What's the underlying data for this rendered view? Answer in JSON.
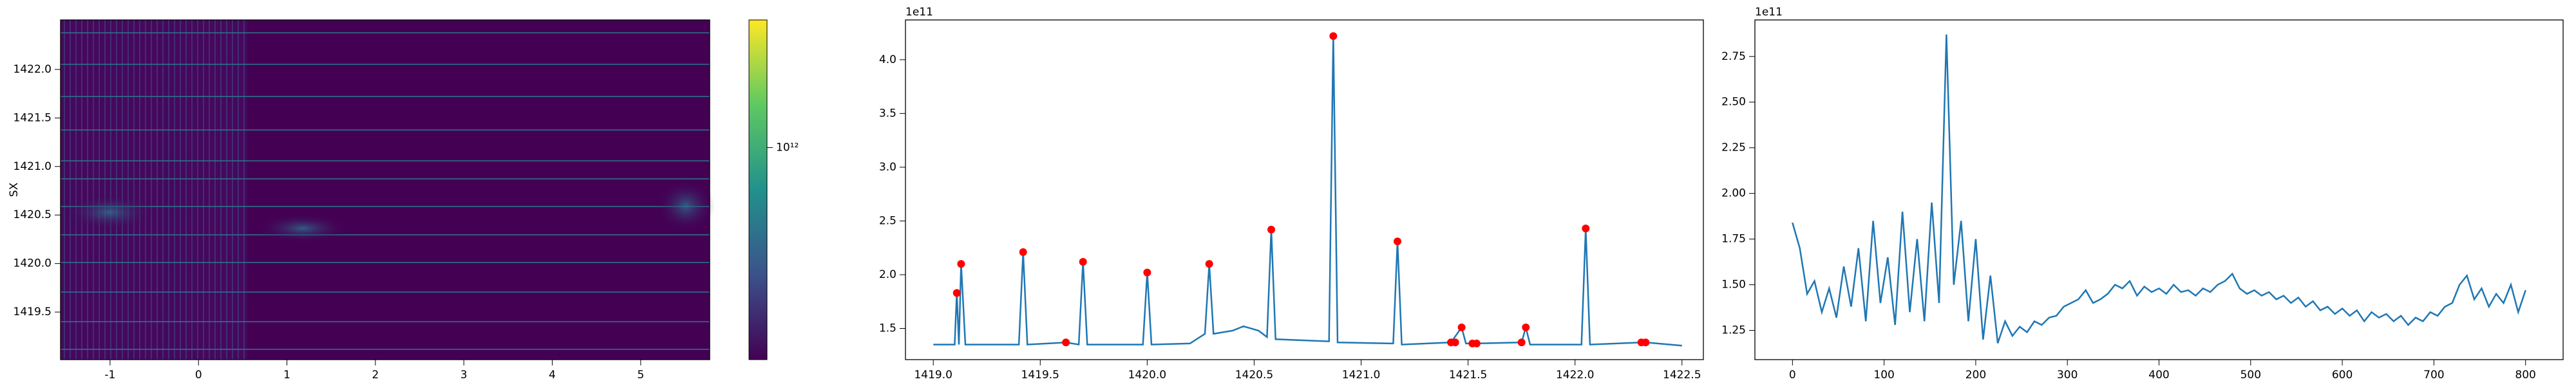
{
  "chart_data": [
    {
      "type": "heatmap",
      "ylabel": "SX",
      "xlim": [
        -1.56,
        5.78
      ],
      "xticks": [
        -1,
        0,
        1,
        2,
        3,
        4,
        5
      ],
      "ylim": [
        1419.01,
        1422.51
      ],
      "yticks": [
        1419.5,
        {
          "value": 1420.0,
          "label": "1420.0"
        },
        1420.5,
        {
          "value": 1421.0,
          "label": "1421.0"
        },
        1421.5,
        {
          "value": 1422.0,
          "label": "1422.0"
        }
      ],
      "colorbar": {
        "scale": "log",
        "clim": [
          100000000000,
          4000000000000
        ],
        "ticks": [
          {
            "value": 1000000000000,
            "label": "10¹²"
          }
        ]
      }
    },
    {
      "type": "line",
      "offset_text": "1e11",
      "color": "#1f77b4",
      "xlim": [
        1418.87,
        1422.6
      ],
      "xticks": [
        {
          "value": 1419.0,
          "label": "1419.0"
        },
        1419.5,
        {
          "value": 1420.0,
          "label": "1420.0"
        },
        1420.5,
        {
          "value": 1421.0,
          "label": "1421.0"
        },
        1421.5,
        {
          "value": 1422.0,
          "label": "1422.0"
        },
        1422.5
      ],
      "ylim": [
        1.21,
        4.37
      ],
      "yticks": [
        1.5,
        {
          "value": 2.0,
          "label": "2.0"
        },
        2.5,
        {
          "value": 3.0,
          "label": "3.0"
        },
        3.5,
        {
          "value": 4.0,
          "label": "4.0"
        }
      ],
      "x": [
        1419.0,
        1419.1,
        1419.11,
        1419.12,
        1419.13,
        1419.15,
        1419.4,
        1419.42,
        1419.44,
        1419.62,
        1419.68,
        1419.7,
        1419.72,
        1419.98,
        1420.0,
        1420.02,
        1420.2,
        1420.27,
        1420.29,
        1420.31,
        1420.4,
        1420.45,
        1420.52,
        1420.56,
        1420.58,
        1420.6,
        1420.85,
        1420.87,
        1420.89,
        1421.15,
        1421.17,
        1421.19,
        1421.42,
        1421.47,
        1421.49,
        1421.54,
        1421.75,
        1421.77,
        1421.79,
        1422.03,
        1422.05,
        1422.07,
        1422.31,
        1422.33,
        1422.5
      ],
      "values": [
        1.35,
        1.35,
        1.83,
        1.35,
        2.1,
        1.35,
        1.35,
        2.21,
        1.35,
        1.37,
        1.35,
        2.12,
        1.35,
        1.35,
        2.02,
        1.35,
        1.36,
        1.45,
        2.1,
        1.45,
        1.48,
        1.52,
        1.48,
        1.42,
        2.42,
        1.4,
        1.38,
        4.22,
        1.37,
        1.36,
        2.31,
        1.35,
        1.37,
        1.51,
        1.36,
        1.36,
        1.37,
        1.51,
        1.35,
        1.35,
        2.43,
        1.35,
        1.37,
        1.37,
        1.34
      ],
      "markers": {
        "color": "red",
        "x": [
          1419.11,
          1419.13,
          1419.42,
          1419.62,
          1419.7,
          1420.0,
          1420.29,
          1420.58,
          1420.87,
          1421.17,
          1421.42,
          1421.44,
          1421.47,
          1421.52,
          1421.54,
          1421.75,
          1421.77,
          1422.05,
          1422.31,
          1422.33
        ],
        "values": [
          1.83,
          2.1,
          2.21,
          1.37,
          2.12,
          2.02,
          2.1,
          2.42,
          4.22,
          2.31,
          1.37,
          1.37,
          1.51,
          1.36,
          1.36,
          1.37,
          1.51,
          2.43,
          1.37,
          1.37
        ]
      }
    },
    {
      "type": "line",
      "offset_text": "1e11",
      "color": "#1f77b4",
      "xlim": [
        -41,
        841
      ],
      "xticks": [
        0,
        100,
        200,
        300,
        400,
        500,
        600,
        700,
        800
      ],
      "ylim": [
        1.09,
        2.95
      ],
      "yticks": [
        1.25,
        {
          "value": 1.5,
          "label": "1.50"
        },
        1.75,
        {
          "value": 2.0,
          "label": "2.00"
        },
        2.25,
        {
          "value": 2.5,
          "label": "2.50"
        },
        2.75
      ],
      "x": [
        0,
        8,
        16,
        24,
        32,
        40,
        48,
        56,
        64,
        72,
        80,
        88,
        96,
        104,
        112,
        120,
        128,
        136,
        144,
        152,
        160,
        168,
        176,
        184,
        192,
        200,
        208,
        216,
        224,
        232,
        240,
        248,
        256,
        264,
        272,
        280,
        288,
        296,
        304,
        312,
        320,
        328,
        336,
        344,
        352,
        360,
        368,
        376,
        384,
        392,
        400,
        408,
        416,
        424,
        432,
        440,
        448,
        456,
        464,
        472,
        480,
        488,
        496,
        504,
        512,
        520,
        528,
        536,
        544,
        552,
        560,
        568,
        576,
        584,
        592,
        600,
        608,
        616,
        624,
        632,
        640,
        648,
        656,
        664,
        672,
        680,
        688,
        696,
        704,
        712,
        720,
        728,
        736,
        744,
        752,
        760,
        768,
        776,
        784,
        792,
        800
      ],
      "values": [
        1.84,
        1.7,
        1.45,
        1.52,
        1.35,
        1.48,
        1.32,
        1.6,
        1.38,
        1.7,
        1.3,
        1.85,
        1.4,
        1.65,
        1.28,
        1.9,
        1.35,
        1.75,
        1.3,
        1.95,
        1.4,
        2.87,
        1.5,
        1.85,
        1.3,
        1.75,
        1.2,
        1.55,
        1.18,
        1.3,
        1.22,
        1.27,
        1.24,
        1.3,
        1.28,
        1.32,
        1.33,
        1.38,
        1.4,
        1.42,
        1.47,
        1.4,
        1.42,
        1.45,
        1.5,
        1.48,
        1.52,
        1.44,
        1.49,
        1.46,
        1.48,
        1.45,
        1.5,
        1.46,
        1.47,
        1.44,
        1.48,
        1.46,
        1.5,
        1.52,
        1.56,
        1.48,
        1.45,
        1.47,
        1.44,
        1.46,
        1.42,
        1.44,
        1.4,
        1.43,
        1.38,
        1.41,
        1.36,
        1.38,
        1.34,
        1.37,
        1.33,
        1.36,
        1.3,
        1.35,
        1.32,
        1.34,
        1.3,
        1.33,
        1.28,
        1.32,
        1.3,
        1.35,
        1.33,
        1.38,
        1.4,
        1.5,
        1.55,
        1.42,
        1.48,
        1.38,
        1.45,
        1.4,
        1.5,
        1.35,
        1.47
      ]
    }
  ]
}
